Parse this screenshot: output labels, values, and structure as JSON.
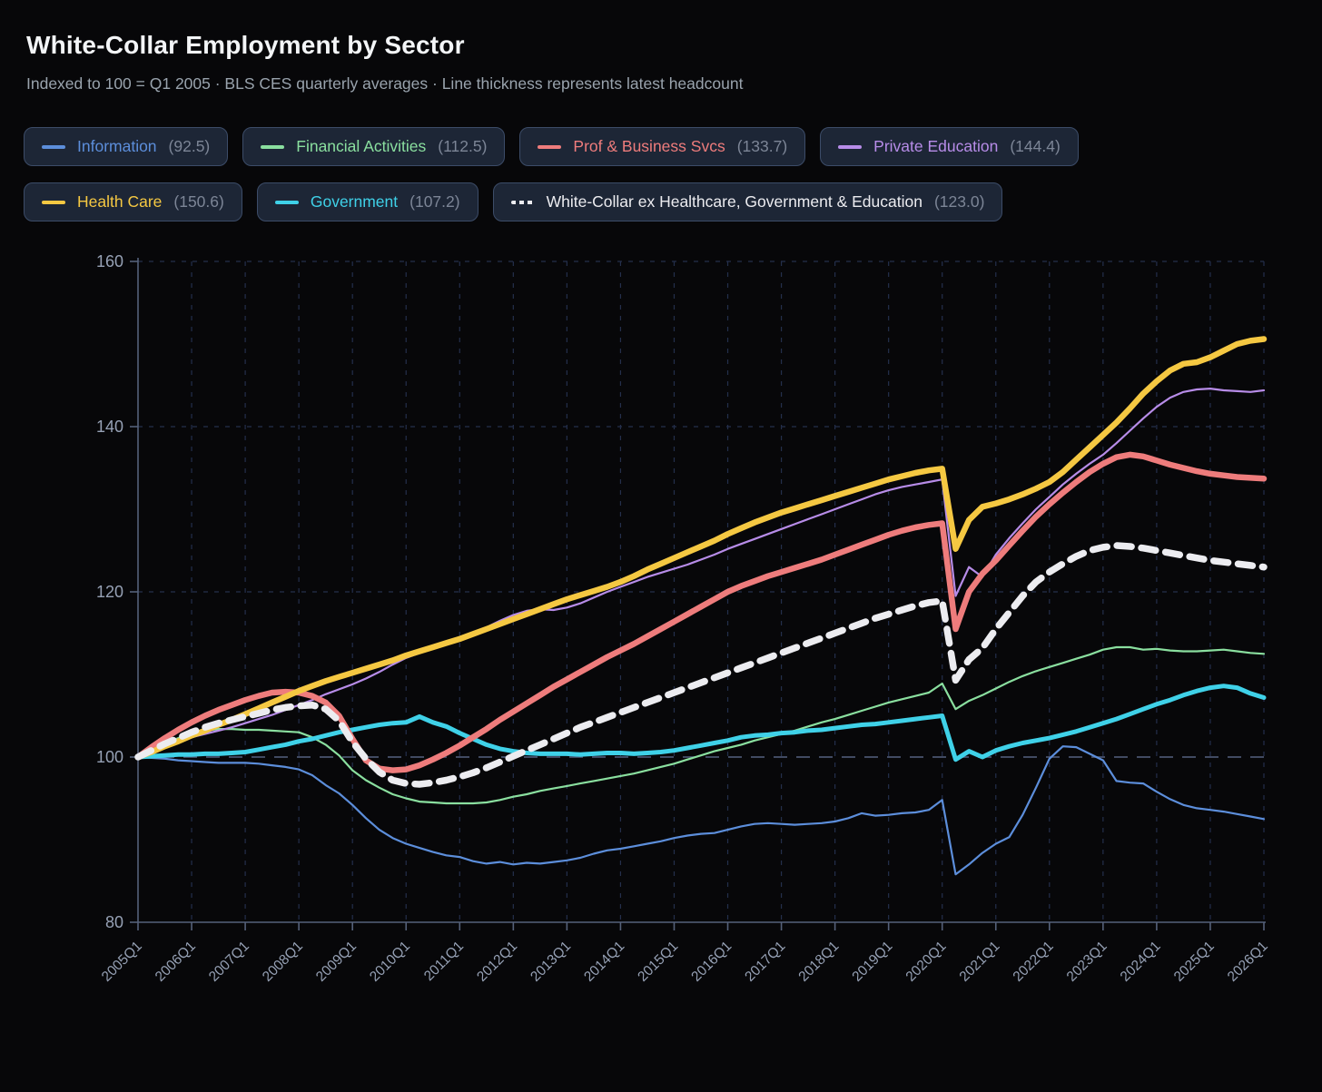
{
  "header": {
    "title": "White-Collar Employment by Sector",
    "subtitle": "Indexed to 100 = Q1 2005 · BLS CES quarterly averages · Line thickness represents latest headcount"
  },
  "colors": {
    "background": "#070709",
    "chip_bg": "#1d2636",
    "chip_border": "#3c4c68",
    "value_text": "#7c8596",
    "subtitle_text": "#99a3ad",
    "tick_text": "#96a1b5",
    "grid": "#242f4c",
    "grid_100": "#4a546f",
    "axis": "#55617a"
  },
  "chart_data": {
    "type": "line",
    "title": "White-Collar Employment by Sector",
    "subtitle": "Indexed to 100 = Q1 2005 · BLS CES quarterly averages · Line thickness represents latest headcount",
    "x_unit": "quarter",
    "x_start": "2005Q1",
    "x_end": "2026Q1",
    "points_per_series": 85,
    "x_tick_labels": [
      "2005Q1",
      "2006Q1",
      "2007Q1",
      "2008Q1",
      "2009Q1",
      "2010Q1",
      "2011Q1",
      "2012Q1",
      "2013Q1",
      "2014Q1",
      "2015Q1",
      "2016Q1",
      "2017Q1",
      "2018Q1",
      "2019Q1",
      "2020Q1",
      "2021Q1",
      "2022Q1",
      "2023Q1",
      "2024Q1",
      "2025Q1",
      "2026Q1"
    ],
    "y_ticks": [
      160,
      140,
      120,
      100,
      80
    ],
    "ylim": [
      80,
      160
    ],
    "grid": {
      "horizontal": true,
      "vertical": true,
      "style": "dashed",
      "emphasized_line": 100
    },
    "legend_position": "top",
    "series": [
      {
        "name": "Information",
        "latest": "92.5",
        "color": "#5c8edb",
        "width": 2.2,
        "dashed": false,
        "values": [
          100,
          99.9,
          99.8,
          99.6,
          99.5,
          99.4,
          99.3,
          99.3,
          99.3,
          99.2,
          99,
          98.8,
          98.5,
          97.8,
          96.6,
          95.6,
          94.2,
          92.6,
          91.2,
          90.2,
          89.5,
          89,
          88.5,
          88.1,
          87.9,
          87.4,
          87.1,
          87.3,
          87,
          87.2,
          87.1,
          87.3,
          87.5,
          87.8,
          88.3,
          88.7,
          88.9,
          89.2,
          89.5,
          89.8,
          90.2,
          90.5,
          90.7,
          90.8,
          91.2,
          91.6,
          91.9,
          92,
          91.9,
          91.8,
          91.9,
          92,
          92.2,
          92.6,
          93.2,
          92.9,
          93,
          93.2,
          93.3,
          93.6,
          94.8,
          85.8,
          87,
          88.4,
          89.5,
          90.3,
          93,
          96.3,
          99.8,
          101.3,
          101.2,
          100.4,
          99.6,
          97.1,
          96.9,
          96.8,
          95.8,
          94.9,
          94.2,
          93.8,
          93.6,
          93.4,
          93.1,
          92.8,
          92.5
        ]
      },
      {
        "name": "Financial Activities",
        "latest": "112.5",
        "color": "#8adf9f",
        "width": 2.2,
        "dashed": false,
        "values": [
          100,
          100.8,
          101.6,
          102.3,
          102.8,
          103.2,
          103.4,
          103.4,
          103.3,
          103.3,
          103.2,
          103.1,
          103,
          102.4,
          101.5,
          100.2,
          98.4,
          97.2,
          96.3,
          95.5,
          95,
          94.6,
          94.5,
          94.4,
          94.4,
          94.4,
          94.5,
          94.8,
          95.2,
          95.5,
          95.9,
          96.2,
          96.5,
          96.8,
          97.1,
          97.4,
          97.7,
          98,
          98.4,
          98.8,
          99.2,
          99.7,
          100.2,
          100.7,
          101.1,
          101.5,
          102,
          102.4,
          102.8,
          103.2,
          103.7,
          104.2,
          104.6,
          105.1,
          105.6,
          106.1,
          106.6,
          107,
          107.4,
          107.8,
          108.9,
          105.8,
          106.8,
          107.5,
          108.3,
          109.1,
          109.8,
          110.4,
          110.9,
          111.4,
          111.9,
          112.4,
          113,
          113.3,
          113.3,
          113,
          113.1,
          112.9,
          112.8,
          112.8,
          112.9,
          113,
          112.8,
          112.6,
          112.5
        ]
      },
      {
        "name": "Private Education",
        "latest": "144.4",
        "color": "#b78ce8",
        "width": 2.2,
        "dashed": false,
        "values": [
          100,
          100.7,
          101.3,
          101.9,
          102.4,
          102.8,
          103.2,
          103.6,
          104.1,
          104.6,
          105.1,
          105.7,
          106.3,
          106.9,
          107.6,
          108.2,
          108.8,
          109.5,
          110.3,
          111.2,
          112,
          112.6,
          113.1,
          113.6,
          114.2,
          114.9,
          115.7,
          116.5,
          117.2,
          117.7,
          117.9,
          117.8,
          118.1,
          118.6,
          119.3,
          120,
          120.6,
          121.2,
          121.8,
          122.3,
          122.8,
          123.3,
          123.9,
          124.5,
          125.2,
          125.8,
          126.4,
          127,
          127.6,
          128.2,
          128.8,
          129.4,
          130,
          130.6,
          131.2,
          131.8,
          132.3,
          132.7,
          133,
          133.3,
          133.6,
          119.5,
          123,
          121.8,
          124.5,
          126.5,
          128.3,
          130,
          131.5,
          133,
          134.3,
          135.5,
          136.6,
          138,
          139.5,
          141,
          142.4,
          143.5,
          144.2,
          144.5,
          144.6,
          144.4,
          144.3,
          144.2,
          144.4
        ]
      },
      {
        "name": "Government",
        "latest": "107.2",
        "color": "#3fd1e8",
        "width": 5,
        "dashed": false,
        "values": [
          100,
          100.1,
          100.2,
          100.3,
          100.3,
          100.4,
          100.4,
          100.5,
          100.6,
          100.9,
          101.2,
          101.5,
          101.9,
          102.2,
          102.6,
          103,
          103.3,
          103.6,
          103.9,
          104.1,
          104.2,
          104.9,
          104.2,
          103.7,
          102.9,
          102.2,
          101.5,
          101,
          100.7,
          100.5,
          100.4,
          100.4,
          100.4,
          100.3,
          100.4,
          100.5,
          100.5,
          100.4,
          100.5,
          100.6,
          100.8,
          101.1,
          101.4,
          101.7,
          102,
          102.4,
          102.6,
          102.7,
          102.9,
          103,
          103.2,
          103.3,
          103.5,
          103.7,
          103.9,
          104,
          104.2,
          104.4,
          104.6,
          104.8,
          105,
          99.7,
          100.7,
          100,
          100.8,
          101.3,
          101.7,
          102,
          102.3,
          102.7,
          103.1,
          103.6,
          104.1,
          104.6,
          105.2,
          105.8,
          106.4,
          106.9,
          107.5,
          108,
          108.4,
          108.6,
          108.4,
          107.7,
          107.2
        ]
      },
      {
        "name": "Prof & Business Svcs",
        "latest": "133.7",
        "color": "#ee7c7c",
        "width": 6.5,
        "dashed": false,
        "values": [
          100,
          101.2,
          102.3,
          103.3,
          104.2,
          105,
          105.7,
          106.3,
          106.9,
          107.4,
          107.8,
          107.9,
          107.8,
          107.4,
          106.6,
          105,
          102.2,
          99.6,
          98.6,
          98.4,
          98.5,
          99,
          99.7,
          100.5,
          101.4,
          102.4,
          103.4,
          104.5,
          105.5,
          106.5,
          107.5,
          108.5,
          109.4,
          110.3,
          111.2,
          112.1,
          112.9,
          113.7,
          114.6,
          115.5,
          116.4,
          117.3,
          118.2,
          119.1,
          120,
          120.7,
          121.3,
          121.9,
          122.4,
          122.9,
          123.4,
          123.9,
          124.5,
          125.1,
          125.7,
          126.3,
          126.9,
          127.4,
          127.8,
          128.1,
          128.3,
          115.5,
          120,
          122.2,
          123.8,
          125.6,
          127.4,
          129.1,
          130.6,
          132,
          133.3,
          134.5,
          135.5,
          136.3,
          136.6,
          136.4,
          135.9,
          135.4,
          135,
          134.6,
          134.3,
          134.1,
          133.9,
          133.8,
          133.7
        ]
      },
      {
        "name": "Health Care",
        "latest": "150.6",
        "color": "#f5c842",
        "width": 6.5,
        "dashed": false,
        "values": [
          100,
          100.6,
          101.3,
          101.9,
          102.6,
          103.2,
          103.9,
          104.5,
          105.2,
          105.9,
          106.6,
          107.3,
          108,
          108.6,
          109.2,
          109.7,
          110.2,
          110.7,
          111.2,
          111.7,
          112.3,
          112.8,
          113.3,
          113.8,
          114.3,
          114.9,
          115.5,
          116.1,
          116.7,
          117.3,
          117.9,
          118.5,
          119.1,
          119.6,
          120.1,
          120.6,
          121.2,
          121.9,
          122.7,
          123.4,
          124.1,
          124.8,
          125.5,
          126.2,
          127,
          127.7,
          128.4,
          129,
          129.6,
          130.1,
          130.6,
          131.1,
          131.6,
          132.1,
          132.6,
          133.1,
          133.6,
          134,
          134.4,
          134.7,
          134.9,
          125.2,
          128.7,
          130.3,
          130.7,
          131.2,
          131.8,
          132.5,
          133.3,
          134.5,
          136,
          137.5,
          139,
          140.5,
          142.2,
          144,
          145.5,
          146.8,
          147.6,
          147.8,
          148.4,
          149.2,
          150,
          150.4,
          150.6
        ]
      },
      {
        "name": "White-Collar ex Healthcare, Government & Education",
        "latest": "123.0",
        "color": "#ececf0",
        "width": 7.5,
        "dashed": true,
        "values": [
          100,
          100.8,
          101.6,
          102.3,
          103,
          103.6,
          104.1,
          104.5,
          104.9,
          105.3,
          105.7,
          106,
          106.2,
          106.3,
          105.8,
          104.4,
          101.8,
          99.8,
          98.2,
          97.2,
          96.8,
          96.7,
          96.9,
          97.2,
          97.6,
          98.1,
          98.7,
          99.4,
          100.1,
          100.8,
          101.5,
          102.2,
          102.9,
          103.6,
          104.2,
          104.8,
          105.4,
          106,
          106.6,
          107.2,
          107.8,
          108.4,
          109,
          109.6,
          110.2,
          110.8,
          111.4,
          112,
          112.6,
          113.2,
          113.8,
          114.4,
          115,
          115.6,
          116.2,
          116.8,
          117.3,
          117.8,
          118.3,
          118.7,
          118.9,
          109.3,
          111.8,
          113.2,
          115.5,
          117.5,
          119.5,
          121.2,
          122.4,
          123.4,
          124.3,
          125,
          125.4,
          125.6,
          125.5,
          125.3,
          125,
          124.7,
          124.4,
          124.1,
          123.8,
          123.6,
          123.4,
          123.2,
          123
        ]
      }
    ]
  }
}
